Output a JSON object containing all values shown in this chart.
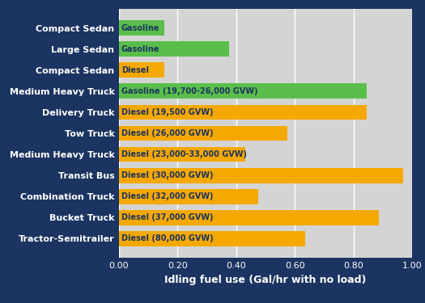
{
  "categories": [
    "Compact Sedan",
    "Large Sedan",
    "Compact Sedan",
    "Medium Heavy Truck",
    "Delivery Truck",
    "Tow Truck",
    "Medium Heavy Truck",
    "Transit Bus",
    "Combination Truck",
    "Bucket Truck",
    "Tractor-Semitrailer"
  ],
  "labels": [
    "Gasoline",
    "Gasoline",
    "Diesel",
    "Gasoline (19,700-26,000 GVW)",
    "Diesel (19,500 GVW)",
    "Diesel (26,000 GVW)",
    "Diesel (23,000-33,000 GVW)",
    "Diesel (30,000 GVW)",
    "Diesel (32,000 GVW)",
    "Diesel (37,000 GVW)",
    "Diesel (80,000 GVW)"
  ],
  "values": [
    0.155,
    0.375,
    0.155,
    0.845,
    0.845,
    0.575,
    0.43,
    0.97,
    0.475,
    0.885,
    0.635
  ],
  "colors": [
    "#5abf4a",
    "#5abf4a",
    "#f5a800",
    "#5abf4a",
    "#f5a800",
    "#f5a800",
    "#f5a800",
    "#f5a800",
    "#f5a800",
    "#f5a800",
    "#f5a800"
  ],
  "xlabel": "Idling fuel use (Gal/hr with no load)",
  "xlim": [
    0,
    1.0
  ],
  "xticks": [
    0.0,
    0.2,
    0.4,
    0.6,
    0.8,
    1.0
  ],
  "xtick_labels": [
    "0.00",
    "0.20",
    "0.40",
    "0.60",
    "0.80",
    "1.00"
  ],
  "background_color": "#1c3461",
  "plot_bg_color": "#d4d4d4",
  "bar_text_color": "#1c3461",
  "ylabel_color": "#ffffff",
  "xlabel_color": "#ffffff",
  "tick_color": "#ffffff",
  "bar_height": 0.72,
  "label_fontsize": 8,
  "bar_label_fontsize": 7,
  "xlabel_fontsize": 9,
  "grid_color": "#ffffff",
  "grid_lw": 1.0
}
